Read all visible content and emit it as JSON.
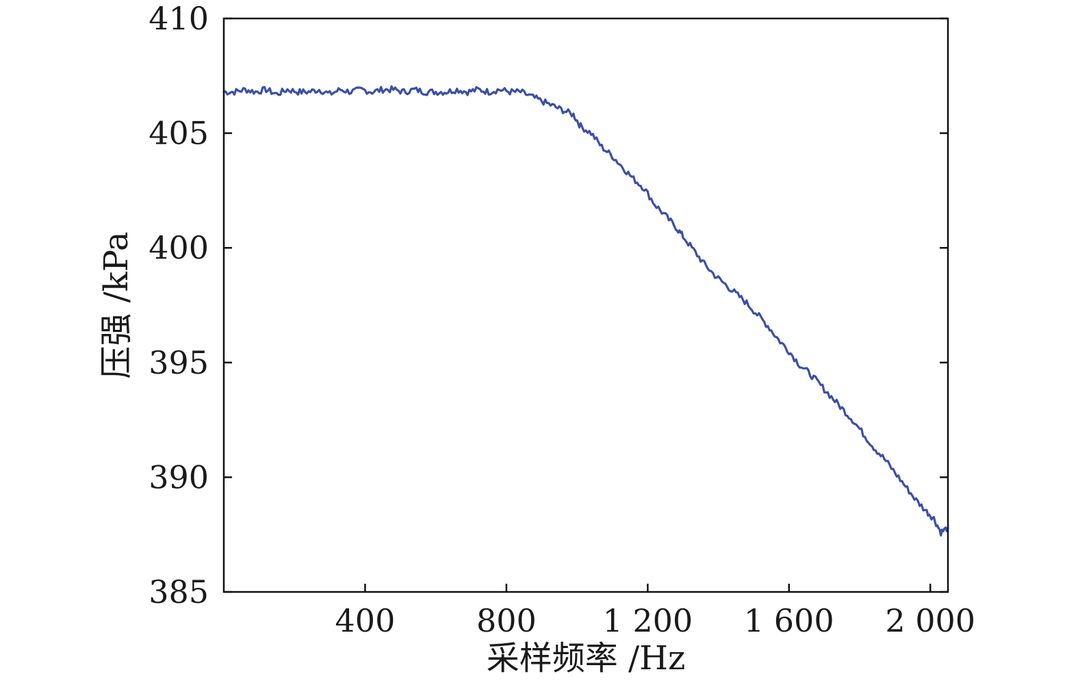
{
  "chart_data": {
    "type": "line",
    "xlabel": "采样频率 /Hz",
    "ylabel": "压强 /kPa",
    "xlim": [
      0,
      2050
    ],
    "ylim": [
      385,
      410
    ],
    "x_ticks": [
      {
        "value": 400,
        "label": "400"
      },
      {
        "value": 800,
        "label": "800"
      },
      {
        "value": 1200,
        "label": "1 200"
      },
      {
        "value": 1600,
        "label": "1 600"
      },
      {
        "value": 2000,
        "label": "2 000"
      }
    ],
    "y_ticks": [
      {
        "value": 385,
        "label": "385"
      },
      {
        "value": 390,
        "label": "390"
      },
      {
        "value": 395,
        "label": "395"
      },
      {
        "value": 400,
        "label": "400"
      },
      {
        "value": 405,
        "label": "405"
      },
      {
        "value": 410,
        "label": "410"
      }
    ],
    "grid": false,
    "series": [
      {
        "color": "#3a4fa8",
        "x": [
          0,
          30,
          60,
          90,
          120,
          150,
          180,
          210,
          240,
          270,
          300,
          330,
          360,
          390,
          420,
          450,
          480,
          510,
          540,
          570,
          600,
          630,
          660,
          690,
          720,
          750,
          780,
          810,
          840,
          870,
          900,
          930,
          960,
          990,
          1010,
          1040,
          1070,
          1100,
          1130,
          1160,
          1190,
          1220,
          1250,
          1280,
          1300,
          1330,
          1360,
          1390,
          1420,
          1450,
          1480,
          1510,
          1540,
          1570,
          1600,
          1630,
          1660,
          1690,
          1720,
          1750,
          1780,
          1810,
          1840,
          1870,
          1900,
          1930,
          1960,
          1990,
          2010,
          2030,
          2050
        ],
        "y": [
          406.8,
          406.8,
          406.9,
          406.8,
          406.9,
          406.7,
          406.9,
          406.8,
          406.8,
          406.9,
          406.7,
          406.9,
          406.8,
          406.9,
          406.8,
          406.9,
          406.9,
          406.8,
          406.9,
          406.8,
          406.8,
          406.8,
          406.9,
          406.8,
          406.9,
          406.8,
          406.9,
          406.8,
          406.8,
          406.6,
          406.4,
          406.2,
          406.0,
          405.8,
          405.3,
          405.0,
          404.4,
          404.0,
          403.5,
          403.0,
          402.6,
          401.9,
          401.4,
          400.9,
          400.5,
          399.9,
          399.3,
          398.8,
          398.4,
          398.0,
          397.6,
          397.1,
          396.6,
          396.0,
          395.5,
          394.9,
          394.5,
          394.0,
          393.5,
          393.0,
          392.5,
          391.9,
          391.3,
          390.8,
          390.2,
          389.6,
          389.0,
          388.5,
          388.2,
          387.6,
          387.8
        ]
      }
    ]
  }
}
